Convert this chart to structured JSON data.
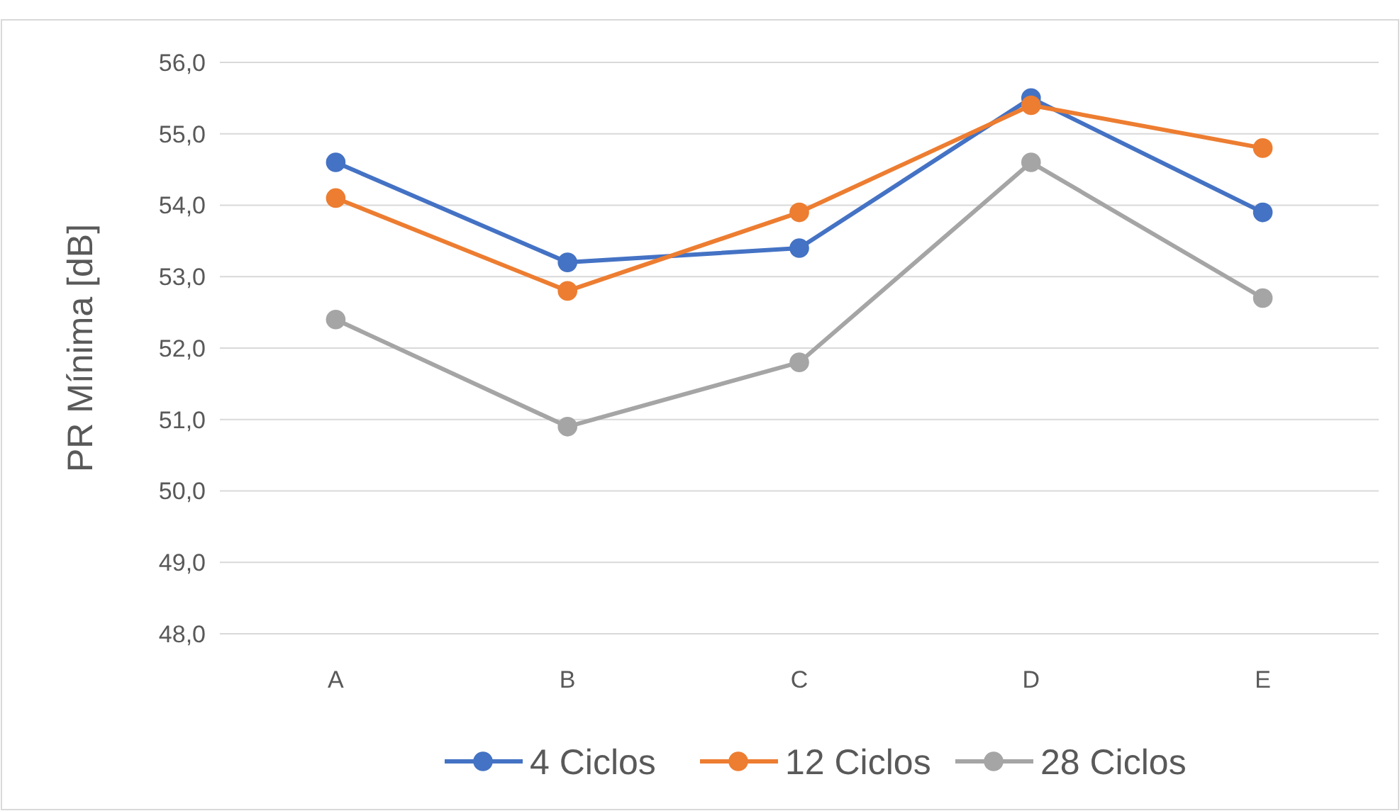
{
  "chart_data": {
    "type": "line",
    "ylabel": "PR Mínima [dB]",
    "categories": [
      "A",
      "B",
      "C",
      "D",
      "E"
    ],
    "series": [
      {
        "name": "4 Ciclos",
        "color": "#4472c4",
        "values": [
          54.6,
          53.2,
          53.4,
          55.5,
          53.9
        ]
      },
      {
        "name": "12 Ciclos",
        "color": "#ed7d31",
        "values": [
          54.1,
          52.8,
          53.9,
          55.4,
          54.8
        ]
      },
      {
        "name": "28 Ciclos",
        "color": "#a5a5a5",
        "values": [
          52.4,
          50.9,
          51.8,
          54.6,
          52.7
        ]
      }
    ],
    "ylim": [
      48,
      56
    ],
    "yticks": [
      {
        "value": 48,
        "label": "48,0"
      },
      {
        "value": 49,
        "label": "49,0"
      },
      {
        "value": 50,
        "label": "50,0"
      },
      {
        "value": 51,
        "label": "51,0"
      },
      {
        "value": 52,
        "label": "52,0"
      },
      {
        "value": 53,
        "label": "53,0"
      },
      {
        "value": 54,
        "label": "54,0"
      },
      {
        "value": 55,
        "label": "55,0"
      },
      {
        "value": 56,
        "label": "56,0"
      }
    ],
    "grid": "y",
    "legend": "bottom",
    "marker": "circle",
    "line_style": "solid"
  }
}
